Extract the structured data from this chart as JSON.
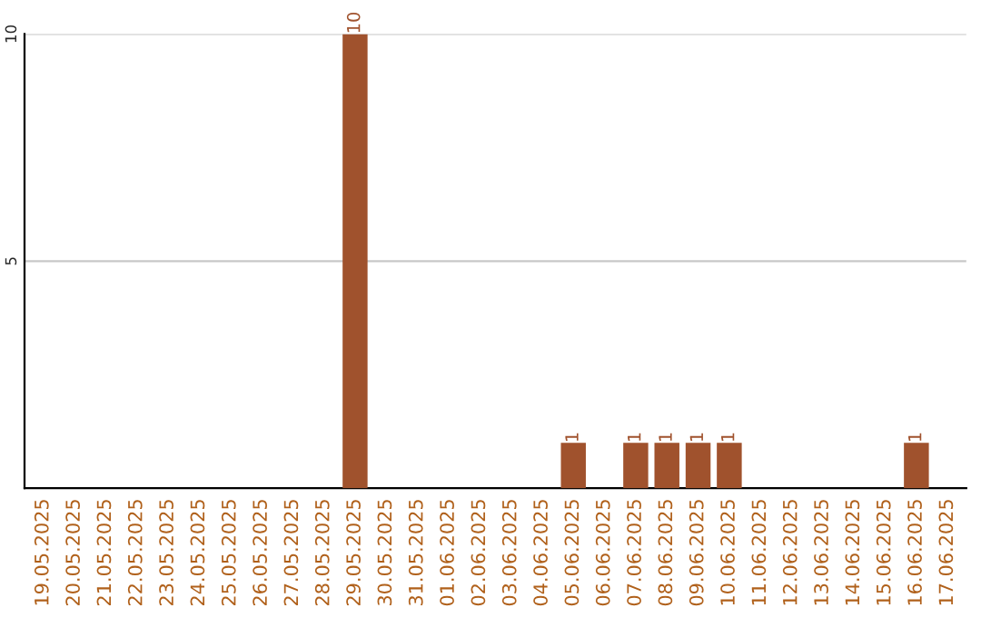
{
  "chart_data": {
    "type": "bar",
    "categories": [
      "19.05.2025",
      "20.05.2025",
      "21.05.2025",
      "22.05.2025",
      "23.05.2025",
      "24.05.2025",
      "25.05.2025",
      "26.05.2025",
      "27.05.2025",
      "28.05.2025",
      "29.05.2025",
      "30.05.2025",
      "31.05.2025",
      "01.06.2025",
      "02.06.2025",
      "03.06.2025",
      "04.06.2025",
      "05.06.2025",
      "06.06.2025",
      "07.06.2025",
      "08.06.2025",
      "09.06.2025",
      "10.06.2025",
      "11.06.2025",
      "12.06.2025",
      "13.06.2025",
      "14.06.2025",
      "15.06.2025",
      "16.06.2025",
      "17.06.2025"
    ],
    "values": [
      0,
      0,
      0,
      0,
      0,
      0,
      0,
      0,
      0,
      0,
      10,
      0,
      0,
      0,
      0,
      0,
      0,
      1,
      0,
      1,
      1,
      1,
      1,
      0,
      0,
      0,
      0,
      0,
      1,
      0
    ],
    "value_labels": [
      null,
      null,
      null,
      null,
      null,
      null,
      null,
      null,
      null,
      null,
      "10",
      null,
      null,
      null,
      null,
      null,
      null,
      "1",
      null,
      "1",
      "1",
      "1",
      "1",
      null,
      null,
      null,
      null,
      null,
      "1",
      null
    ],
    "color": "#a0522d",
    "ylim": [
      0,
      10
    ],
    "yticks": [
      5,
      10
    ],
    "grid": "y"
  }
}
